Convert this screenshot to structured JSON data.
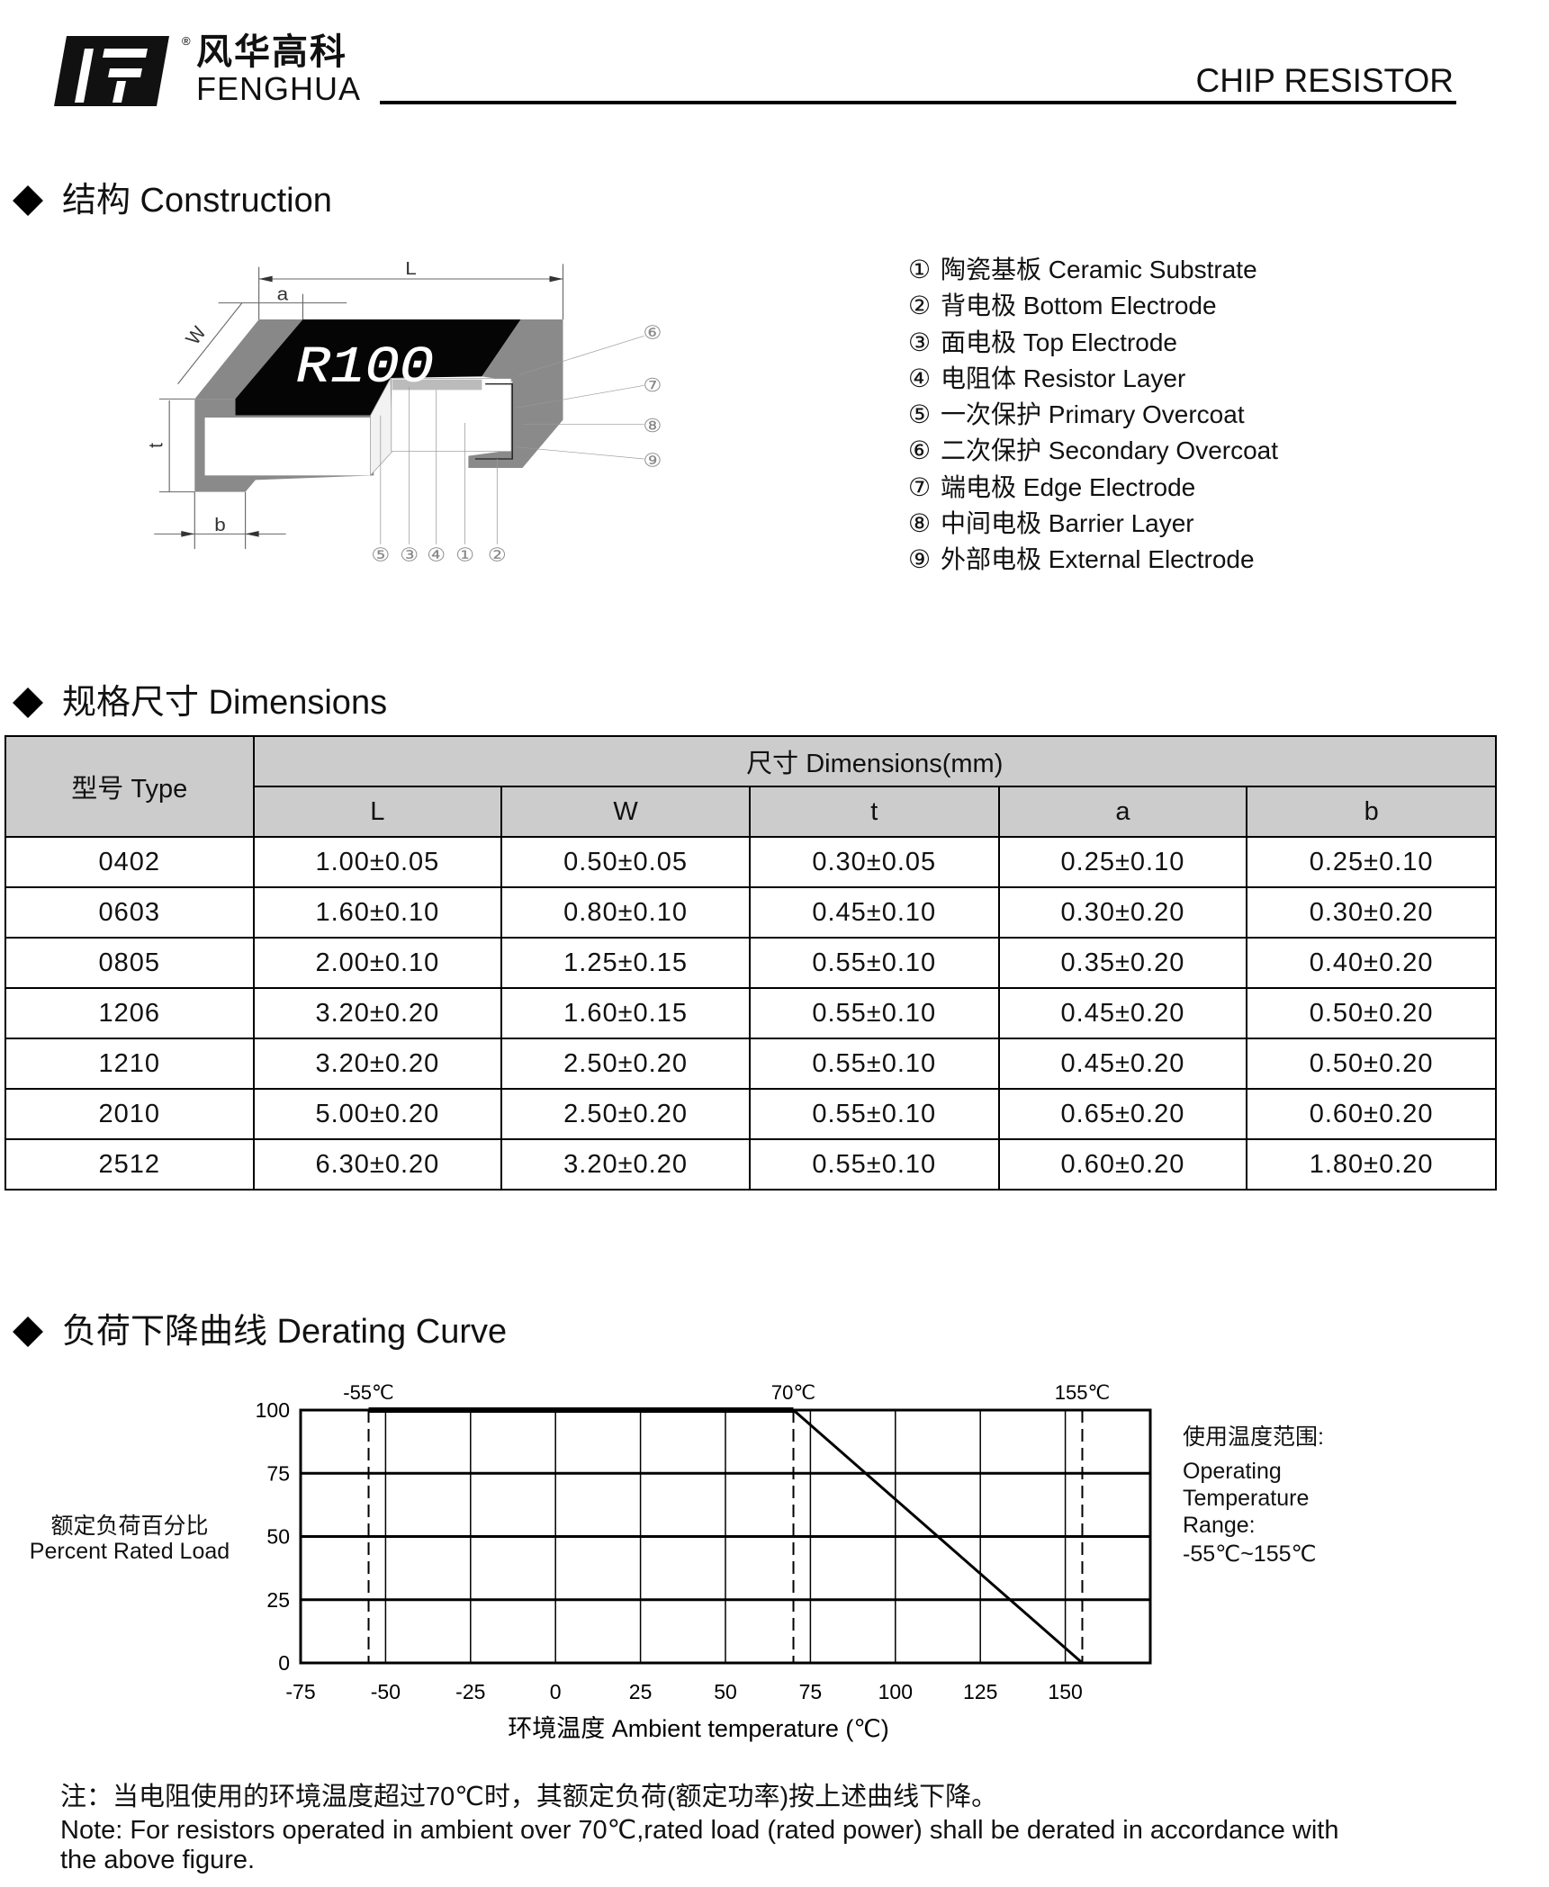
{
  "header": {
    "logo_cn": "风华高科",
    "logo_en": "FENGHUA",
    "registered_mark": "®",
    "title": "CHIP RESISTOR"
  },
  "construction": {
    "heading": "结构 Construction",
    "figure": {
      "marking": "R100",
      "dimension_labels": [
        "L",
        "a",
        "W",
        "t",
        "b"
      ],
      "right_callouts": [
        "⑥",
        "⑦",
        "⑧",
        "⑨"
      ],
      "bottom_callouts": [
        "⑤",
        "③",
        "④",
        "①",
        "②"
      ]
    },
    "legend": [
      {
        "num": "①",
        "label": "陶瓷基板  Ceramic Substrate"
      },
      {
        "num": "②",
        "label": "背电极 Bottom Electrode"
      },
      {
        "num": "③",
        "label": "面电极 Top Electrode"
      },
      {
        "num": "④",
        "label": "电阻体  Resistor Layer"
      },
      {
        "num": "⑤",
        "label": "一次保护 Primary Overcoat"
      },
      {
        "num": "⑥",
        "label": "二次保护 Secondary Overcoat"
      },
      {
        "num": "⑦",
        "label": "端电极 Edge Electrode"
      },
      {
        "num": "⑧",
        "label": "中间电极 Barrier Layer"
      },
      {
        "num": "⑨",
        "label": "外部电极 External Electrode"
      }
    ]
  },
  "dimensions": {
    "heading": "规格尺寸 Dimensions",
    "type_header": "型号 Type",
    "group_header": "尺寸 Dimensions(mm)",
    "columns": [
      "L",
      "W",
      "t",
      "a",
      "b"
    ],
    "rows": [
      [
        "0402",
        "1.00±0.05",
        "0.50±0.05",
        "0.30±0.05",
        "0.25±0.10",
        "0.25±0.10"
      ],
      [
        "0603",
        "1.60±0.10",
        "0.80±0.10",
        "0.45±0.10",
        "0.30±0.20",
        "0.30±0.20"
      ],
      [
        "0805",
        "2.00±0.10",
        "1.25±0.15",
        "0.55±0.10",
        "0.35±0.20",
        "0.40±0.20"
      ],
      [
        "1206",
        "3.20±0.20",
        "1.60±0.15",
        "0.55±0.10",
        "0.45±0.20",
        "0.50±0.20"
      ],
      [
        "1210",
        "3.20±0.20",
        "2.50±0.20",
        "0.55±0.10",
        "0.45±0.20",
        "0.50±0.20"
      ],
      [
        "2010",
        "5.00±0.20",
        "2.50±0.20",
        "0.55±0.10",
        "0.65±0.20",
        "0.60±0.20"
      ],
      [
        "2512",
        "6.30±0.20",
        "3.20±0.20",
        "0.55±0.10",
        "0.60±0.20",
        "1.80±0.20"
      ]
    ],
    "header_bg": "#cccccc"
  },
  "derating": {
    "heading": "负荷下降曲线 Derating Curve",
    "ylabel_cn": "额定负荷百分比",
    "ylabel_en": "Percent Rated Load",
    "range_note": {
      "title": "使用温度范围:",
      "lines": [
        "Operating",
        "Temperature",
        "Range:",
        "-55℃~155℃"
      ]
    }
  },
  "chart_data": {
    "type": "line",
    "xlabel": "环境温度 Ambient temperature (℃)",
    "ylabel": "额定负荷百分比 Percent Rated Load",
    "xlim": [
      -75,
      175
    ],
    "ylim": [
      0,
      100
    ],
    "x_ticks": [
      -75,
      -50,
      -25,
      0,
      25,
      50,
      75,
      100,
      125,
      150
    ],
    "y_ticks": [
      0,
      25,
      50,
      75,
      100
    ],
    "grid": true,
    "series": [
      {
        "x": [
          -55,
          70,
          155
        ],
        "y": [
          100,
          100,
          0
        ]
      }
    ],
    "reference_lines": [
      {
        "x": -55,
        "label": "-55℃"
      },
      {
        "x": 70,
        "label": "70℃"
      },
      {
        "x": 155,
        "label": "155℃"
      }
    ]
  },
  "notes": {
    "cn": "注：当电阻使用的环境温度超过70℃时，其额定负荷(额定功率)按上述曲线下降。",
    "en_line1": "Note: For resistors operated in ambient over 70℃,rated  load (rated power) shall be derated in accordance with",
    "en_line2": "the above figure."
  }
}
